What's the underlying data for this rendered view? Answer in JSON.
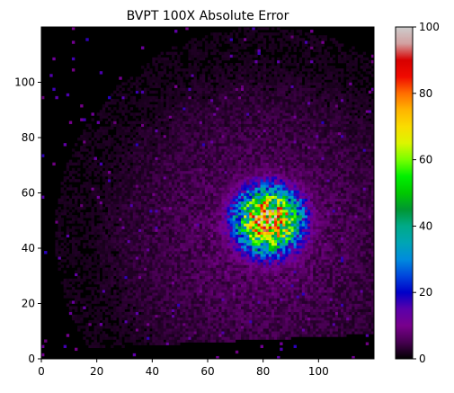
{
  "chart_data": {
    "type": "heatmap",
    "title": "BVPT 100X Absolute Error",
    "xlabel": "",
    "ylabel": "",
    "xlim": [
      0,
      120
    ],
    "ylim": [
      0,
      120
    ],
    "x_ticks": [
      0,
      20,
      40,
      60,
      80,
      100
    ],
    "y_ticks": [
      0,
      20,
      40,
      60,
      80,
      100
    ],
    "grid_size": [
      120,
      120
    ],
    "colormap": "nipy_spectral",
    "colorbar": {
      "range": [
        0,
        100
      ],
      "ticks": [
        0,
        20,
        40,
        60,
        80,
        100
      ]
    },
    "background_color": "#000000",
    "hotspot": {
      "x_center": 82,
      "y_center": 50,
      "peak_value": 100,
      "core_radius": 11
    },
    "halo": {
      "x_center": 80,
      "y_center": 45,
      "value_range": [
        4,
        12
      ]
    }
  }
}
